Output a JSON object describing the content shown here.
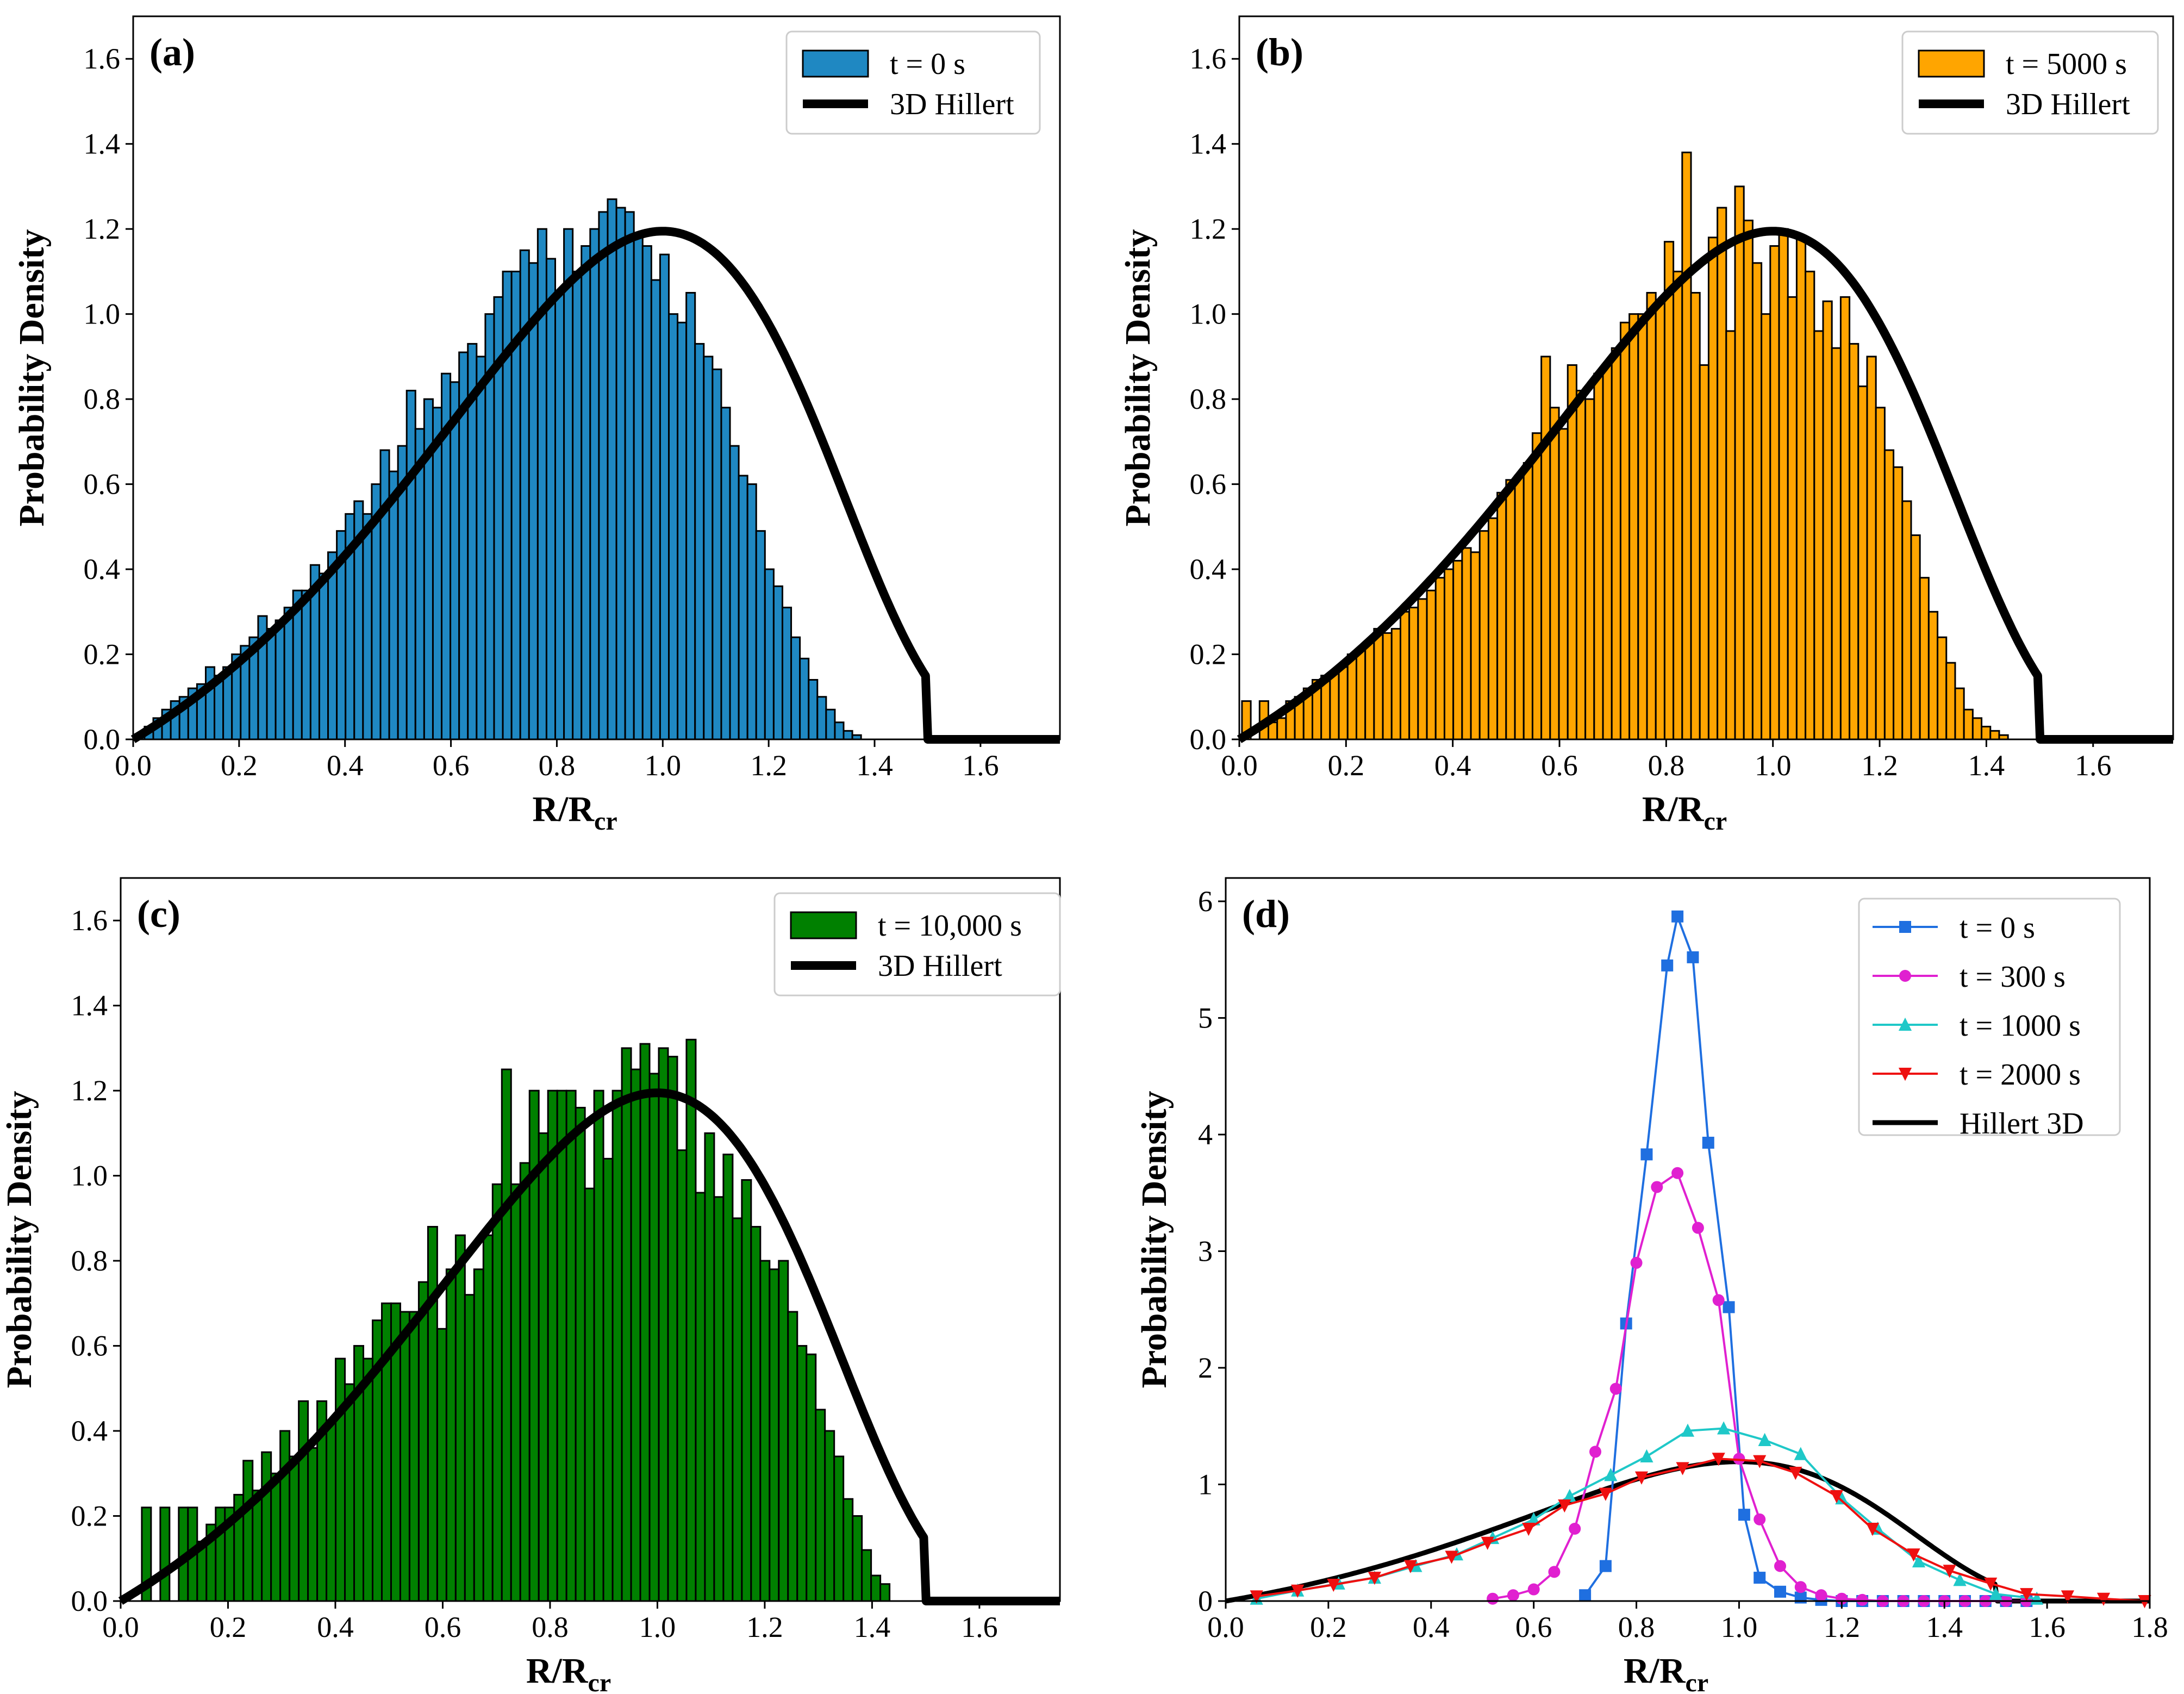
{
  "chart_data": [
    {
      "panel": "(a)",
      "type": "histogram",
      "bar_color": "#1f88c2",
      "xlabel_main": "R/R",
      "xlabel_sub": "cr",
      "ylabel": "Probability Density",
      "xlim": [
        0,
        1.75
      ],
      "ylim": [
        0,
        1.7
      ],
      "xticks": [
        "0.0",
        "0.2",
        "0.4",
        "0.6",
        "0.8",
        "1.0",
        "1.2",
        "1.4",
        "1.6"
      ],
      "yticks": [
        "0.0",
        "0.2",
        "0.4",
        "0.6",
        "0.8",
        "1.0",
        "1.2",
        "1.4",
        "1.6"
      ],
      "bin_width": 0.0165,
      "bins_start": 0.005,
      "values": [
        0.01,
        0.03,
        0.05,
        0.07,
        0.09,
        0.1,
        0.12,
        0.13,
        0.17,
        0.15,
        0.17,
        0.2,
        0.22,
        0.24,
        0.29,
        0.26,
        0.28,
        0.31,
        0.35,
        0.35,
        0.41,
        0.39,
        0.44,
        0.49,
        0.53,
        0.56,
        0.53,
        0.6,
        0.68,
        0.63,
        0.69,
        0.82,
        0.73,
        0.8,
        0.78,
        0.86,
        0.84,
        0.91,
        0.93,
        0.9,
        1.0,
        1.04,
        1.1,
        1.1,
        1.15,
        1.12,
        1.2,
        1.13,
        1.05,
        1.2,
        1.1,
        1.16,
        1.2,
        1.24,
        1.27,
        1.25,
        1.24,
        1.18,
        1.16,
        1.08,
        1.14,
        1.0,
        0.98,
        1.05,
        0.93,
        0.9,
        0.87,
        0.78,
        0.69,
        0.62,
        0.6,
        0.49,
        0.4,
        0.36,
        0.31,
        0.24,
        0.19,
        0.14,
        0.1,
        0.07,
        0.04,
        0.02,
        0.01
      ],
      "legend": {
        "series": "t = 0 s",
        "curve": "3D Hillert"
      }
    },
    {
      "panel": "(b)",
      "type": "histogram",
      "bar_color": "#ffa500",
      "xlabel_main": "R/R",
      "xlabel_sub": "cr",
      "ylabel": "Probability Density",
      "xlim": [
        0,
        1.75
      ],
      "ylim": [
        0,
        1.7
      ],
      "xticks": [
        "0.0",
        "0.2",
        "0.4",
        "0.6",
        "0.8",
        "1.0",
        "1.2",
        "1.4",
        "1.6"
      ],
      "yticks": [
        "0.0",
        "0.2",
        "0.4",
        "0.6",
        "0.8",
        "1.0",
        "1.2",
        "1.4",
        "1.6"
      ],
      "bin_width": 0.0165,
      "bins_start": 0.005,
      "values": [
        0.09,
        0.0,
        0.09,
        0.04,
        0.05,
        0.09,
        0.1,
        0.12,
        0.14,
        0.15,
        0.16,
        0.17,
        0.2,
        0.21,
        0.23,
        0.26,
        0.25,
        0.26,
        0.3,
        0.31,
        0.33,
        0.35,
        0.38,
        0.4,
        0.42,
        0.45,
        0.44,
        0.49,
        0.52,
        0.58,
        0.61,
        0.62,
        0.65,
        0.72,
        0.9,
        0.78,
        0.73,
        0.88,
        0.82,
        0.8,
        0.86,
        0.88,
        0.92,
        0.98,
        1.0,
        1.0,
        1.05,
        1.03,
        1.17,
        1.1,
        1.38,
        1.05,
        0.88,
        1.18,
        1.25,
        0.96,
        1.3,
        1.22,
        1.12,
        1.0,
        1.16,
        1.2,
        1.04,
        1.18,
        1.1,
        0.96,
        1.03,
        0.92,
        1.04,
        0.93,
        0.83,
        0.9,
        0.78,
        0.68,
        0.64,
        0.56,
        0.48,
        0.38,
        0.3,
        0.24,
        0.18,
        0.12,
        0.07,
        0.05,
        0.03,
        0.02,
        0.01
      ],
      "legend": {
        "series": "t = 5000 s",
        "curve": "3D Hillert"
      }
    },
    {
      "panel": "(c)",
      "type": "histogram",
      "bar_color": "#008000",
      "xlabel_main": "R/R",
      "xlabel_sub": "cr",
      "ylabel": "Probability Density",
      "xlim": [
        0,
        1.75
      ],
      "ylim": [
        0,
        1.7
      ],
      "xticks": [
        "0.0",
        "0.2",
        "0.4",
        "0.6",
        "0.8",
        "1.0",
        "1.2",
        "1.4",
        "1.6"
      ],
      "yticks": [
        "0.0",
        "0.2",
        "0.4",
        "0.6",
        "0.8",
        "1.0",
        "1.2",
        "1.4",
        "1.6"
      ],
      "bin_width": 0.0172,
      "bins_start": 0.005,
      "values": [
        0.0,
        0.0,
        0.22,
        0.0,
        0.22,
        0.0,
        0.22,
        0.22,
        0.14,
        0.18,
        0.22,
        0.22,
        0.25,
        0.33,
        0.26,
        0.35,
        0.3,
        0.4,
        0.34,
        0.47,
        0.36,
        0.47,
        0.42,
        0.57,
        0.51,
        0.6,
        0.57,
        0.66,
        0.7,
        0.7,
        0.68,
        0.68,
        0.75,
        0.88,
        0.64,
        0.78,
        0.86,
        0.72,
        0.78,
        0.86,
        0.98,
        1.25,
        0.98,
        1.03,
        1.2,
        1.1,
        1.2,
        1.2,
        1.2,
        1.16,
        0.97,
        1.2,
        1.04,
        1.2,
        1.3,
        1.25,
        1.31,
        1.24,
        1.3,
        1.28,
        1.06,
        1.32,
        0.96,
        1.1,
        0.95,
        1.05,
        0.9,
        0.99,
        0.88,
        0.8,
        0.78,
        0.8,
        0.68,
        0.6,
        0.58,
        0.45,
        0.4,
        0.34,
        0.24,
        0.2,
        0.12,
        0.06,
        0.04
      ],
      "legend": {
        "series": "t = 10,000 s",
        "curve": "3D Hillert"
      }
    },
    {
      "panel": "(d)",
      "type": "line",
      "xlabel_main": "R/R",
      "xlabel_sub": "cr",
      "ylabel": "Probability Density",
      "xlim": [
        0,
        1.8
      ],
      "ylim": [
        0,
        6.2
      ],
      "xticks": [
        "0.0",
        "0.2",
        "0.4",
        "0.6",
        "0.8",
        "1.0",
        "1.2",
        "1.4",
        "1.6",
        "1.8"
      ],
      "yticks": [
        "0",
        "1",
        "2",
        "3",
        "4",
        "5",
        "6"
      ],
      "series": [
        {
          "name": "t = 0 s",
          "color": "#1f6fe0",
          "marker": "square",
          "x": [
            0.7,
            0.74,
            0.78,
            0.82,
            0.86,
            0.88,
            0.91,
            0.94,
            0.98,
            1.01,
            1.04,
            1.08,
            1.12,
            1.16,
            1.2,
            1.24,
            1.28,
            1.32,
            1.36,
            1.4,
            1.44,
            1.48,
            1.52,
            1.56
          ],
          "y": [
            0.05,
            0.3,
            2.38,
            3.83,
            5.45,
            5.87,
            5.52,
            3.93,
            2.52,
            0.74,
            0.2,
            0.08,
            0.03,
            0.01,
            0.0,
            0.0,
            0.0,
            0.0,
            0.0,
            0.0,
            0.0,
            0.0,
            0.0,
            0.0
          ]
        },
        {
          "name": "t = 300 s",
          "color": "#e020d0",
          "marker": "circle",
          "x": [
            0.52,
            0.56,
            0.6,
            0.64,
            0.68,
            0.72,
            0.76,
            0.8,
            0.84,
            0.88,
            0.92,
            0.96,
            1.0,
            1.04,
            1.08,
            1.12,
            1.16,
            1.2,
            1.24,
            1.28,
            1.32,
            1.36,
            1.4,
            1.44,
            1.48,
            1.52,
            1.56
          ],
          "y": [
            0.02,
            0.05,
            0.1,
            0.25,
            0.62,
            1.28,
            1.82,
            2.9,
            3.55,
            3.67,
            3.2,
            2.58,
            1.22,
            0.7,
            0.3,
            0.12,
            0.05,
            0.02,
            0.01,
            0.0,
            0.0,
            0.0,
            0.0,
            0.0,
            0.0,
            0.0,
            0.0
          ]
        },
        {
          "name": "t = 1000 s",
          "color": "#1fc8c8",
          "marker": "triangle-up",
          "x": [
            0.06,
            0.14,
            0.22,
            0.29,
            0.37,
            0.45,
            0.52,
            0.6,
            0.67,
            0.75,
            0.82,
            0.9,
            0.97,
            1.05,
            1.12,
            1.2,
            1.27,
            1.35,
            1.43,
            1.5,
            1.58
          ],
          "y": [
            0.02,
            0.09,
            0.15,
            0.2,
            0.3,
            0.4,
            0.54,
            0.7,
            0.9,
            1.08,
            1.24,
            1.46,
            1.48,
            1.38,
            1.26,
            0.88,
            0.62,
            0.34,
            0.18,
            0.06,
            0.02
          ]
        },
        {
          "name": "t = 2000 s",
          "color": "#ee1010",
          "marker": "triangle-down",
          "x": [
            0.06,
            0.14,
            0.21,
            0.29,
            0.36,
            0.44,
            0.51,
            0.59,
            0.66,
            0.74,
            0.81,
            0.89,
            0.96,
            1.04,
            1.11,
            1.19,
            1.26,
            1.34,
            1.41,
            1.49,
            1.56,
            1.64,
            1.71,
            1.79
          ],
          "y": [
            0.04,
            0.09,
            0.14,
            0.2,
            0.3,
            0.38,
            0.5,
            0.62,
            0.82,
            0.92,
            1.06,
            1.14,
            1.22,
            1.2,
            1.1,
            0.9,
            0.62,
            0.4,
            0.26,
            0.15,
            0.06,
            0.04,
            0.02,
            0.0
          ]
        }
      ],
      "curve_name": "Hillert 3D"
    }
  ]
}
